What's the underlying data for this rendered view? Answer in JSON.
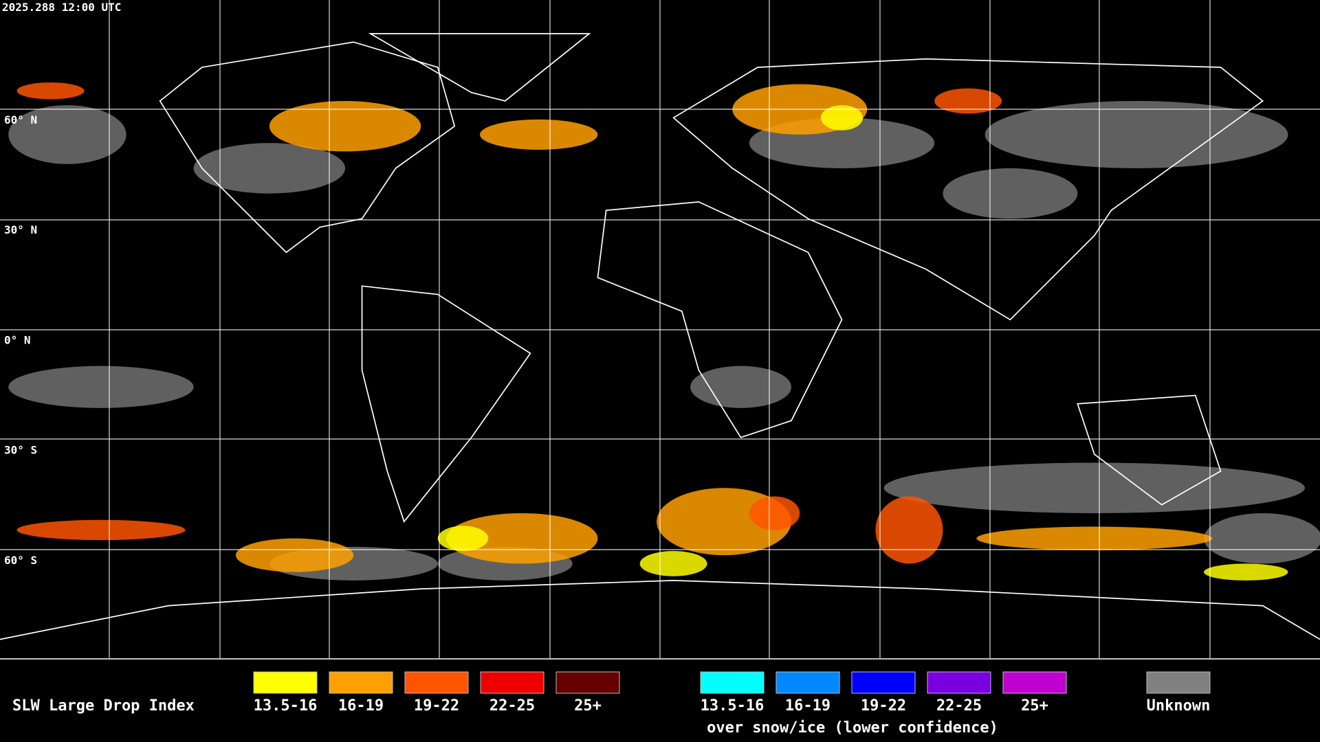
{
  "timestamp": "2025.288 12:00 UTC",
  "lat_labels": [
    "60° N",
    "30° N",
    "0° N",
    "30° S",
    "60° S"
  ],
  "legend": {
    "title": "SLW Large Drop Index",
    "main": [
      {
        "label": "13.5-16",
        "color": "#ffff00"
      },
      {
        "label": "16-19",
        "color": "#ffa000"
      },
      {
        "label": "19-22",
        "color": "#ff5500"
      },
      {
        "label": "22-25",
        "color": "#ee0000"
      },
      {
        "label": "25+",
        "color": "#640000"
      }
    ],
    "snow": [
      {
        "label": "13.5-16",
        "color": "#00ffff"
      },
      {
        "label": "16-19",
        "color": "#0088ff"
      },
      {
        "label": "19-22",
        "color": "#0000ff"
      },
      {
        "label": "22-25",
        "color": "#7a00e0"
      },
      {
        "label": "25+",
        "color": "#c000d0"
      }
    ],
    "snow_note": "over snow/ice (lower confidence)",
    "unknown": {
      "label": "Unknown",
      "color": "#808080"
    }
  }
}
